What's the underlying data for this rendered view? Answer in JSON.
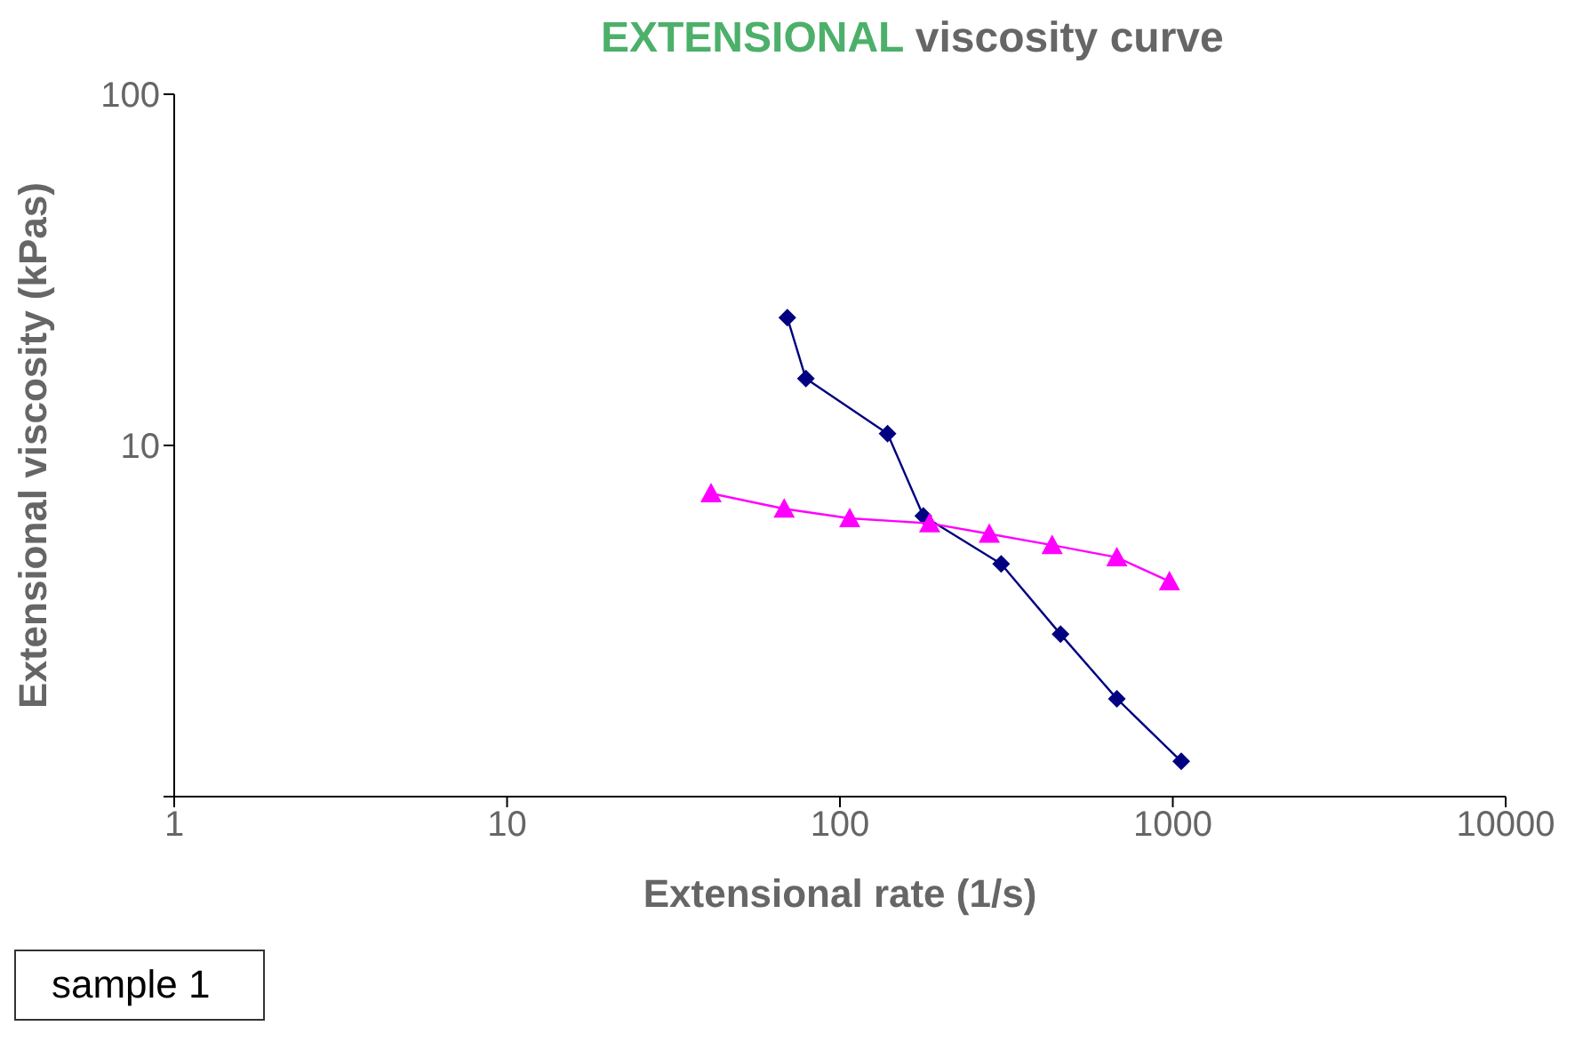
{
  "chart_data": {
    "type": "scatter",
    "title": "EXTENSIONAL viscosity curve",
    "xlabel": "Extensional rate (1/s)",
    "ylabel": "Extensional viscosity (kPas)",
    "log": "xy",
    "xlim": [
      1,
      10000
    ],
    "xticks": [
      1,
      10,
      100,
      1000,
      10000
    ],
    "ylim": [
      1,
      100
    ],
    "yticks": [
      {
        "value": 1,
        "label": null
      },
      10,
      100
    ],
    "line_style": "solid",
    "annotations": [
      "sample 1"
    ],
    "series": [
      {
        "type": "line",
        "marker": "diamond",
        "color": "#000080",
        "x": [
          69.5,
          79,
          139,
          178,
          305,
          460,
          679,
          1060
        ],
        "values": [
          23.1,
          15.5,
          10.8,
          6.3,
          4.6,
          2.9,
          1.9,
          1.26
        ]
      },
      {
        "type": "line",
        "marker": "triangle",
        "color": "#ff00ff",
        "x": [
          41,
          68,
          107,
          186,
          281,
          434,
          679,
          977
        ],
        "values": [
          7.3,
          6.6,
          6.2,
          6.0,
          5.6,
          5.2,
          4.8,
          4.1
        ]
      }
    ]
  }
}
